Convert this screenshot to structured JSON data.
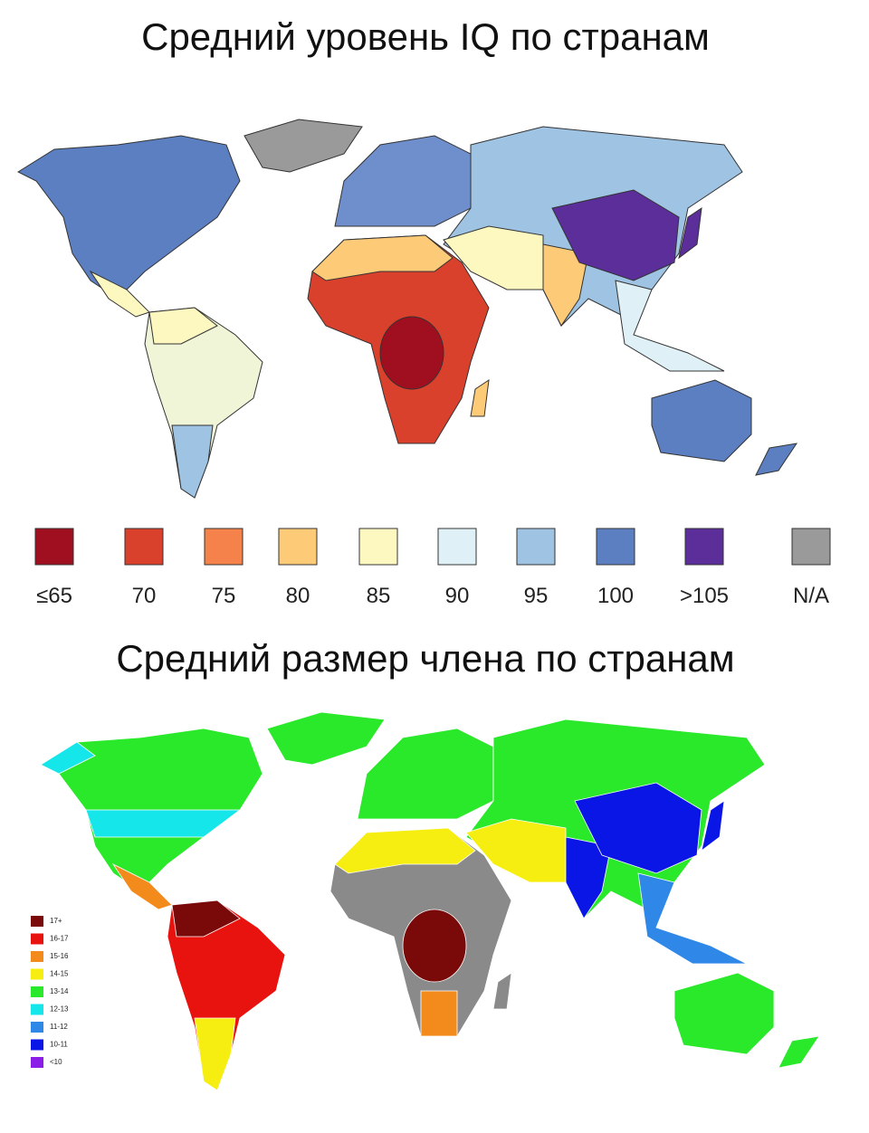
{
  "top_map": {
    "title": "Средний уровень IQ по странам",
    "legend": [
      {
        "label": "≤65",
        "color": "#a00f1f"
      },
      {
        "label": "70",
        "color": "#d9412c"
      },
      {
        "label": "75",
        "color": "#f4824a"
      },
      {
        "label": "80",
        "color": "#fdca78"
      },
      {
        "label": "85",
        "color": "#fdf7c0"
      },
      {
        "label": "90",
        "color": "#dff0f7"
      },
      {
        "label": "95",
        "color": "#9fc3e2"
      },
      {
        "label": "100",
        "color": "#5b7fc0"
      },
      {
        "label": ">105",
        "color": "#5b2e9a"
      },
      {
        "label": "N/A",
        "color": "#9a9a9a"
      }
    ]
  },
  "bottom_map": {
    "title": "Средний размер члена по странам",
    "legend": [
      {
        "label": "17+",
        "color": "#7a0a0a"
      },
      {
        "label": "16-17",
        "color": "#e8120e"
      },
      {
        "label": "15-16",
        "color": "#f28a1c"
      },
      {
        "label": "14-15",
        "color": "#f5ee10"
      },
      {
        "label": "13-14",
        "color": "#2ae82a"
      },
      {
        "label": "12-13",
        "color": "#14e6ea"
      },
      {
        "label": "11-12",
        "color": "#2f88e8"
      },
      {
        "label": "10-11",
        "color": "#0a16e6"
      },
      {
        "label": "<10",
        "color": "#8a1ee6"
      }
    ]
  }
}
